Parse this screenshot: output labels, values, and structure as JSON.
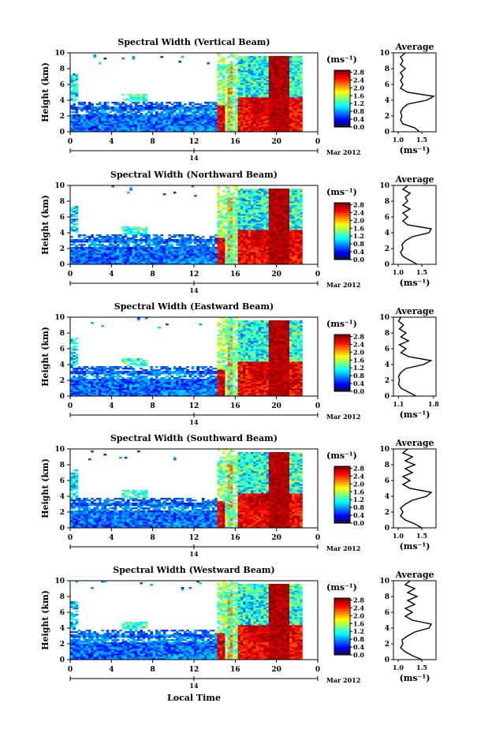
{
  "chart_data": [
    {
      "type": "heatmap",
      "title": "Spectral Width (Vertical Beam)",
      "ylabel": "Height (km)",
      "x_ticks": [
        "0",
        "4",
        "8",
        "12",
        "16",
        "20",
        "0"
      ],
      "y_ticks": [
        "0",
        "2",
        "4",
        "6",
        "8",
        "10"
      ],
      "xlim": [
        0,
        24
      ],
      "ylim": [
        0,
        10
      ],
      "date_day": "14",
      "date_month_year": "Mar 2012",
      "colorbar": {
        "unit": "(ms⁻¹)",
        "ticks": [
          "0.0",
          "0.4",
          "0.8",
          "1.2",
          "1.6",
          "2.0",
          "2.4",
          "2.8"
        ],
        "range": [
          0,
          2.9
        ]
      },
      "avg_panel": {
        "title": "Average",
        "x_ticks": [
          "1.0",
          "1.5"
        ],
        "xlim": [
          0.9,
          1.8
        ],
        "ylim": [
          0,
          10
        ],
        "unit": "(ms⁻¹)",
        "profile": [
          [
            1.45,
            0
          ],
          [
            1.35,
            0.5
          ],
          [
            1.1,
            1
          ],
          [
            1.05,
            1.5
          ],
          [
            1.08,
            2
          ],
          [
            1.05,
            2.5
          ],
          [
            1.1,
            3
          ],
          [
            1.2,
            3.5
          ],
          [
            1.6,
            4
          ],
          [
            1.75,
            4.5
          ],
          [
            1.2,
            5
          ],
          [
            1.05,
            5.5
          ],
          [
            1.1,
            6
          ],
          [
            1.05,
            6.5
          ],
          [
            1.1,
            7
          ],
          [
            1.05,
            7.5
          ],
          [
            1.15,
            8
          ],
          [
            1.05,
            8.5
          ],
          [
            1.1,
            9
          ],
          [
            1.05,
            9.5
          ],
          [
            1.15,
            10
          ]
        ]
      }
    },
    {
      "type": "heatmap",
      "title": "Spectral Width (Northward Beam)",
      "ylabel": "Height (km)",
      "x_ticks": [
        "0",
        "4",
        "8",
        "12",
        "16",
        "20",
        "0"
      ],
      "y_ticks": [
        "0",
        "2",
        "4",
        "6",
        "8",
        "10"
      ],
      "xlim": [
        0,
        24
      ],
      "ylim": [
        0,
        10
      ],
      "date_day": "14",
      "date_month_year": "Mar 2012",
      "colorbar": {
        "unit": "(ms⁻¹)",
        "ticks": [
          "0.0",
          "0.4",
          "0.8",
          "1.2",
          "1.6",
          "2.0",
          "2.4",
          "2.8"
        ],
        "range": [
          0,
          2.9
        ]
      },
      "avg_panel": {
        "title": "Average",
        "x_ticks": [
          "1.0",
          "1.5"
        ],
        "xlim": [
          0.9,
          1.8
        ],
        "ylim": [
          0,
          10
        ],
        "unit": "(ms⁻¹)",
        "profile": [
          [
            1.4,
            0
          ],
          [
            1.25,
            0.5
          ],
          [
            1.1,
            1
          ],
          [
            1.05,
            1.5
          ],
          [
            1.1,
            2
          ],
          [
            1.08,
            2.5
          ],
          [
            1.15,
            3
          ],
          [
            1.3,
            3.5
          ],
          [
            1.65,
            4
          ],
          [
            1.7,
            4.5
          ],
          [
            1.2,
            5
          ],
          [
            1.1,
            5.5
          ],
          [
            1.2,
            6
          ],
          [
            1.1,
            6.5
          ],
          [
            1.25,
            7
          ],
          [
            1.1,
            7.5
          ],
          [
            1.2,
            8
          ],
          [
            1.15,
            8.5
          ],
          [
            1.25,
            9
          ],
          [
            1.1,
            9.5
          ],
          [
            1.2,
            10
          ]
        ]
      }
    },
    {
      "type": "heatmap",
      "title": "Spectral Width (Eastward Beam)",
      "ylabel": "Height (km)",
      "x_ticks": [
        "0",
        "4",
        "8",
        "12",
        "16",
        "20",
        "0"
      ],
      "y_ticks": [
        "0",
        "2",
        "4",
        "6",
        "8",
        "10"
      ],
      "xlim": [
        0,
        24
      ],
      "ylim": [
        0,
        10
      ],
      "date_day": "14",
      "date_month_year": "Mar 2012",
      "colorbar": {
        "unit": "(ms⁻¹)",
        "ticks": [
          "0.0",
          "0.4",
          "0.8",
          "1.2",
          "1.6",
          "2.0",
          "2.4",
          "2.8"
        ],
        "range": [
          0,
          2.9
        ]
      },
      "avg_panel": {
        "title": "Average",
        "x_ticks": [
          "1.1",
          "1.8"
        ],
        "xlim": [
          1.0,
          1.85
        ],
        "ylim": [
          0,
          10
        ],
        "unit": "(ms⁻¹)",
        "profile": [
          [
            1.45,
            0
          ],
          [
            1.3,
            0.5
          ],
          [
            1.15,
            1
          ],
          [
            1.1,
            1.5
          ],
          [
            1.12,
            2
          ],
          [
            1.1,
            2.5
          ],
          [
            1.15,
            3
          ],
          [
            1.25,
            3.5
          ],
          [
            1.6,
            4
          ],
          [
            1.75,
            4.5
          ],
          [
            1.3,
            5
          ],
          [
            1.15,
            5.5
          ],
          [
            1.25,
            6
          ],
          [
            1.12,
            6.5
          ],
          [
            1.3,
            7
          ],
          [
            1.15,
            7.5
          ],
          [
            1.25,
            8
          ],
          [
            1.12,
            8.5
          ],
          [
            1.2,
            9
          ],
          [
            1.1,
            9.5
          ],
          [
            1.15,
            10
          ]
        ]
      }
    },
    {
      "type": "heatmap",
      "title": "Spectral Width (Southward Beam)",
      "ylabel": "Height (km)",
      "x_ticks": [
        "0",
        "4",
        "8",
        "12",
        "16",
        "20",
        "0"
      ],
      "y_ticks": [
        "0",
        "2",
        "4",
        "6",
        "8",
        "10"
      ],
      "xlim": [
        0,
        24
      ],
      "ylim": [
        0,
        10
      ],
      "date_day": "14",
      "date_month_year": "Mar 2012",
      "colorbar": {
        "unit": "(ms⁻¹)",
        "ticks": [
          "0.0",
          "0.4",
          "0.8",
          "1.2",
          "1.6",
          "2.0",
          "2.4",
          "2.8"
        ],
        "range": [
          0,
          2.9
        ]
      },
      "avg_panel": {
        "title": "Average",
        "x_ticks": [
          "1.0",
          "1.5"
        ],
        "xlim": [
          0.9,
          1.8
        ],
        "ylim": [
          0,
          10
        ],
        "unit": "(ms⁻¹)",
        "profile": [
          [
            1.5,
            0
          ],
          [
            1.35,
            0.5
          ],
          [
            1.15,
            1
          ],
          [
            1.05,
            1.5
          ],
          [
            1.1,
            2
          ],
          [
            1.05,
            2.5
          ],
          [
            1.15,
            3
          ],
          [
            1.3,
            3.5
          ],
          [
            1.6,
            4
          ],
          [
            1.7,
            4.5
          ],
          [
            1.25,
            5
          ],
          [
            1.1,
            5.5
          ],
          [
            1.25,
            6
          ],
          [
            1.1,
            6.5
          ],
          [
            1.3,
            7
          ],
          [
            1.15,
            7.5
          ],
          [
            1.35,
            8
          ],
          [
            1.15,
            8.5
          ],
          [
            1.3,
            9
          ],
          [
            1.1,
            9.5
          ],
          [
            1.2,
            10
          ]
        ]
      }
    },
    {
      "type": "heatmap",
      "title": "Spectral Width (Westward Beam)",
      "ylabel": "Height (km)",
      "xlabel": "Local Time",
      "x_ticks": [
        "0",
        "4",
        "8",
        "12",
        "16",
        "20",
        "0"
      ],
      "y_ticks": [
        "0",
        "2",
        "4",
        "6",
        "8",
        "10"
      ],
      "xlim": [
        0,
        24
      ],
      "ylim": [
        0,
        10
      ],
      "date_day": "14",
      "date_month_year": "Mar 2012",
      "colorbar": {
        "unit": "(ms⁻¹)",
        "ticks": [
          "0.0",
          "0.4",
          "0.8",
          "1.2",
          "1.6",
          "2.0",
          "2.4",
          "2.8"
        ],
        "range": [
          0,
          2.9
        ]
      },
      "avg_panel": {
        "title": "Average",
        "x_ticks": [
          "1.0",
          "1.5"
        ],
        "xlim": [
          0.9,
          1.8
        ],
        "ylim": [
          0,
          10
        ],
        "unit": "(ms⁻¹)",
        "profile": [
          [
            1.5,
            0
          ],
          [
            1.3,
            0.5
          ],
          [
            1.15,
            1
          ],
          [
            1.05,
            1.5
          ],
          [
            1.1,
            2
          ],
          [
            1.08,
            2.5
          ],
          [
            1.2,
            3
          ],
          [
            1.35,
            3.5
          ],
          [
            1.65,
            4
          ],
          [
            1.7,
            4.5
          ],
          [
            1.3,
            5
          ],
          [
            1.15,
            5.5
          ],
          [
            1.3,
            6
          ],
          [
            1.15,
            6.5
          ],
          [
            1.35,
            7
          ],
          [
            1.2,
            7.5
          ],
          [
            1.4,
            8
          ],
          [
            1.2,
            8.5
          ],
          [
            1.35,
            9
          ],
          [
            1.15,
            9.5
          ],
          [
            1.25,
            10
          ]
        ]
      }
    }
  ]
}
